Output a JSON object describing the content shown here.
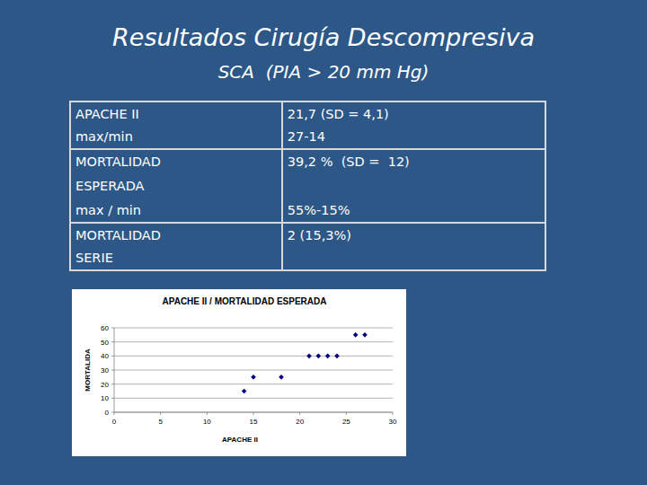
{
  "header": {
    "title": "Resultados Cirugía Descompresiva",
    "subtitle": "SCA  (PIA > 20 mm Hg)"
  },
  "table": {
    "rows": [
      [
        [
          "APACHE II",
          "max/min"
        ],
        [
          "21,7 (SD = 4,1)",
          "27-14"
        ]
      ],
      [
        [
          "MORTALIDAD",
          "ESPERADA",
          "max / min"
        ],
        [
          "39,2 %  (SD =  12)",
          "55%-15%"
        ]
      ],
      [
        [
          "MORTALIDAD",
          "SERIE"
        ],
        [
          "2 (15,3%)"
        ]
      ]
    ]
  },
  "chart_data": {
    "type": "scatter",
    "title": "APACHE II / MORTALIDAD ESPERADA",
    "xlabel": "APACHE II",
    "ylabel": "MORTALIDA",
    "x": [
      14,
      15,
      18,
      21,
      22,
      23,
      24,
      26,
      27
    ],
    "values": [
      15,
      25,
      25,
      40,
      40,
      40,
      40,
      55,
      55
    ],
    "xlim": [
      0,
      30
    ],
    "ylim": [
      0,
      60
    ],
    "xticks": [
      0,
      5,
      10,
      15,
      20,
      25,
      30
    ],
    "yticks": [
      0,
      10,
      20,
      30,
      40,
      50,
      60
    ],
    "grid": true,
    "color": "#000080",
    "marker": "diamond"
  }
}
